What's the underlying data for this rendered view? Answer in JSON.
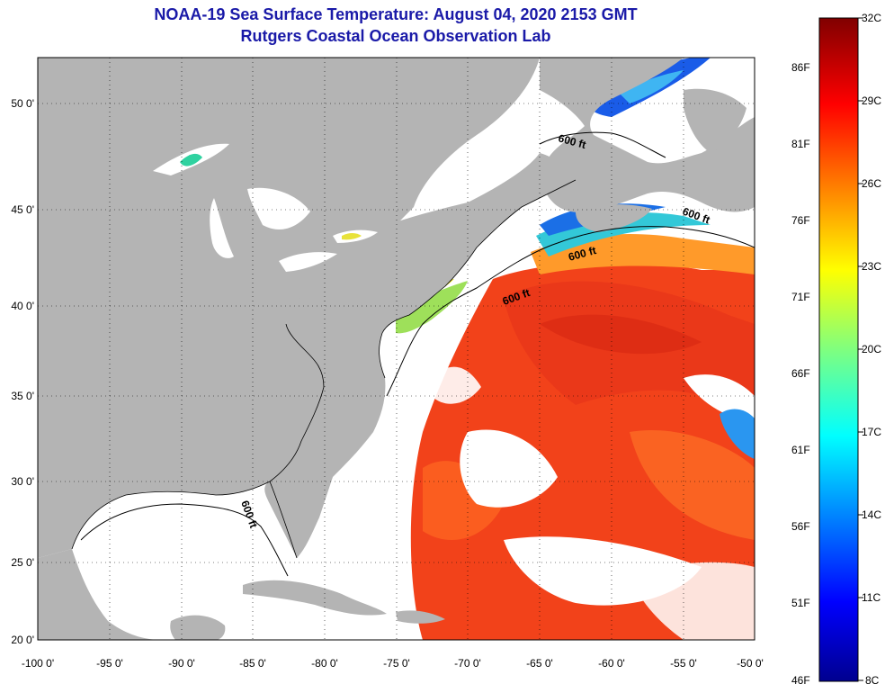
{
  "title": "NOAA-19 Sea Surface Temperature:  August 04, 2020 2153 GMT",
  "subtitle": "Rutgers Coastal Ocean Observation Lab",
  "map": {
    "lon_range": [
      -100,
      -50
    ],
    "lat_range": [
      20,
      52.5
    ],
    "lat_labels": [
      "50 0'",
      "45 0'",
      "40 0'",
      "35 0'",
      "30 0'",
      "25 0'",
      "20 0'"
    ],
    "lon_labels": [
      "-100 0'",
      "-95 0'",
      "-90 0'",
      "-85 0'",
      "-80 0'",
      "-75 0'",
      "-70 0'",
      "-65 0'",
      "-60 0'",
      "-55 0'",
      "-50 0'"
    ],
    "contour_label": "600 ft",
    "colors": {
      "land": "#b4b4b4",
      "cloud": "#ffffff"
    }
  },
  "colorbar": {
    "celsius": [
      "32C",
      "29C",
      "26C",
      "23C",
      "20C",
      "17C",
      "14C",
      "11C",
      "8C"
    ],
    "fahrenheit": [
      "86F",
      "81F",
      "76F",
      "71F",
      "66F",
      "61F",
      "56F",
      "51F",
      "46F"
    ]
  }
}
